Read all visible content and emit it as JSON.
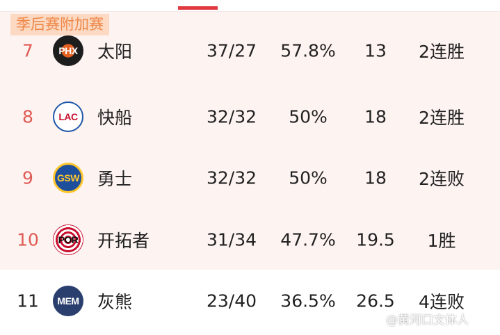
{
  "header": {
    "section_badge": "季后赛附加赛"
  },
  "colors": {
    "accent": "#e0393e",
    "rank_highlight": "#e05a55",
    "badge_bg": "#fbd9c3",
    "badge_text": "#ef8747",
    "playin_bg": "#fdf3f1"
  },
  "teams": [
    {
      "rank": "7",
      "abbr": "PHX",
      "name": "太阳",
      "record": "37/27",
      "pct": "57.8%",
      "gb": "13",
      "streak": "2连胜",
      "logo_color": "#1d1d1d",
      "highlight": true
    },
    {
      "rank": "8",
      "abbr": "LAC",
      "name": "快船",
      "record": "32/32",
      "pct": "50%",
      "gb": "18",
      "streak": "2连胜",
      "logo_color": "#1d57a8",
      "highlight": true
    },
    {
      "rank": "9",
      "abbr": "GSW",
      "name": "勇士",
      "record": "32/32",
      "pct": "50%",
      "gb": "18",
      "streak": "2连败",
      "logo_color": "#1d4f9c",
      "highlight": true
    },
    {
      "rank": "10",
      "abbr": "POR",
      "name": "开拓者",
      "record": "31/34",
      "pct": "47.7%",
      "gb": "19.5",
      "streak": "1胜",
      "logo_color": "#c8102e",
      "highlight": true
    },
    {
      "rank": "11",
      "abbr": "MEM",
      "name": "灰熊",
      "record": "23/40",
      "pct": "36.5%",
      "gb": "26.5",
      "streak": "4连败",
      "logo_color": "#2a3f6e",
      "highlight": false
    }
  ],
  "watermark": "@黄河口文体人"
}
